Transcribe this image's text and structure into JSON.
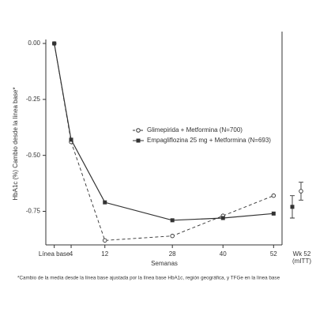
{
  "chart_data": {
    "type": "line",
    "y_label": "HbA1c (%) Cambio desde la línea base*",
    "x_label": "Semanas",
    "footnote": "*Cambio de la media desde la línea base ajustada por la línea base HbA1c, región geográfica, y TFGe en la línea base",
    "x": [
      0,
      4,
      12,
      28,
      40,
      52
    ],
    "xlim": [
      -2,
      54
    ],
    "xticks": [
      {
        "value": 0,
        "label": "Línea base"
      },
      4,
      12,
      28,
      40,
      52
    ],
    "ylim": [
      -0.9,
      0
    ],
    "yticks": [
      {
        "value": 0,
        "label": "0.00"
      },
      {
        "value": -0.25,
        "label": "-0.25"
      },
      {
        "value": -0.5,
        "label": "-0.50"
      },
      {
        "value": -0.75,
        "label": "-0.75"
      }
    ],
    "wk52_label": [
      "Wk 52",
      "(mITT)"
    ],
    "legend": "center right",
    "series": [
      {
        "name": "Glimepirida + Metformina (N=700)",
        "color": "#333333",
        "marker": "circle-open",
        "dashed": true,
        "values": [
          0,
          -0.44,
          -0.88,
          -0.86,
          -0.77,
          -0.68
        ],
        "wk52_value": -0.66,
        "wk52_error": 0.04
      },
      {
        "name": "Empagliflozina 25 mg + Metformina (N=693)",
        "color": "#333333",
        "marker": "square",
        "dashed": false,
        "values": [
          0,
          -0.43,
          -0.71,
          -0.79,
          -0.78,
          -0.76
        ],
        "wk52_value": -0.73,
        "wk52_error": 0.05
      }
    ]
  }
}
